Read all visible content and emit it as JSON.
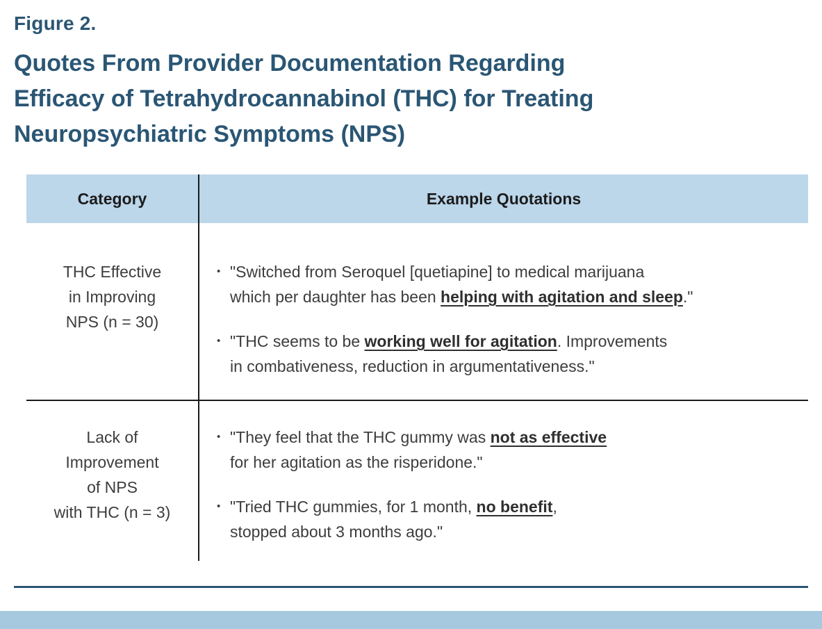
{
  "figure": {
    "label": "Figure 2.",
    "title_lines": [
      "Quotes From Provider Documentation Regarding",
      "Efficacy of Tetrahydrocannabinol (THC) for Treating",
      "Neuropsychiatric Symptoms (NPS)"
    ]
  },
  "table": {
    "headers": [
      "Category",
      "Example Quotations"
    ],
    "rows": [
      {
        "category_lines": [
          "THC Effective",
          "in Improving",
          "NPS (n = 30)"
        ],
        "quotes": [
          [
            {
              "text": "\"Switched from Seroquel [quetiapine] to medical marijuana",
              "emphasis": false
            },
            {
              "break": true
            },
            {
              "text": "which per daughter has been ",
              "emphasis": false
            },
            {
              "text": "helping with agitation and sleep",
              "emphasis": true
            },
            {
              "text": ".\"",
              "emphasis": false
            }
          ],
          [
            {
              "text": "\"THC seems to be ",
              "emphasis": false
            },
            {
              "text": "working well for agitation",
              "emphasis": true
            },
            {
              "text": ". Improvements",
              "emphasis": false
            },
            {
              "break": true
            },
            {
              "text": "in combativeness, reduction in argumentativeness.\"",
              "emphasis": false
            }
          ]
        ]
      },
      {
        "category_lines": [
          "Lack of",
          "Improvement",
          "of NPS",
          "with THC (n = 3)"
        ],
        "quotes": [
          [
            {
              "text": "\"They feel that the THC gummy was ",
              "emphasis": false
            },
            {
              "text": "not as effective",
              "emphasis": true
            },
            {
              "break": true
            },
            {
              "text": "for her agitation as the risperidone.\"",
              "emphasis": false
            }
          ],
          [
            {
              "text": "\"Tried THC gummies, for 1 month, ",
              "emphasis": false
            },
            {
              "text": "no benefit",
              "emphasis": true
            },
            {
              "text": ",",
              "emphasis": false
            },
            {
              "break": true
            },
            {
              "text": "stopped about 3 months ago.\"",
              "emphasis": false
            }
          ]
        ]
      }
    ]
  },
  "bullet": "•",
  "colors": {
    "title": "#2A5674",
    "header_bg": "#BCD6EA",
    "bottom_bar": "#A6C9DF",
    "rule": "#2A5674"
  }
}
